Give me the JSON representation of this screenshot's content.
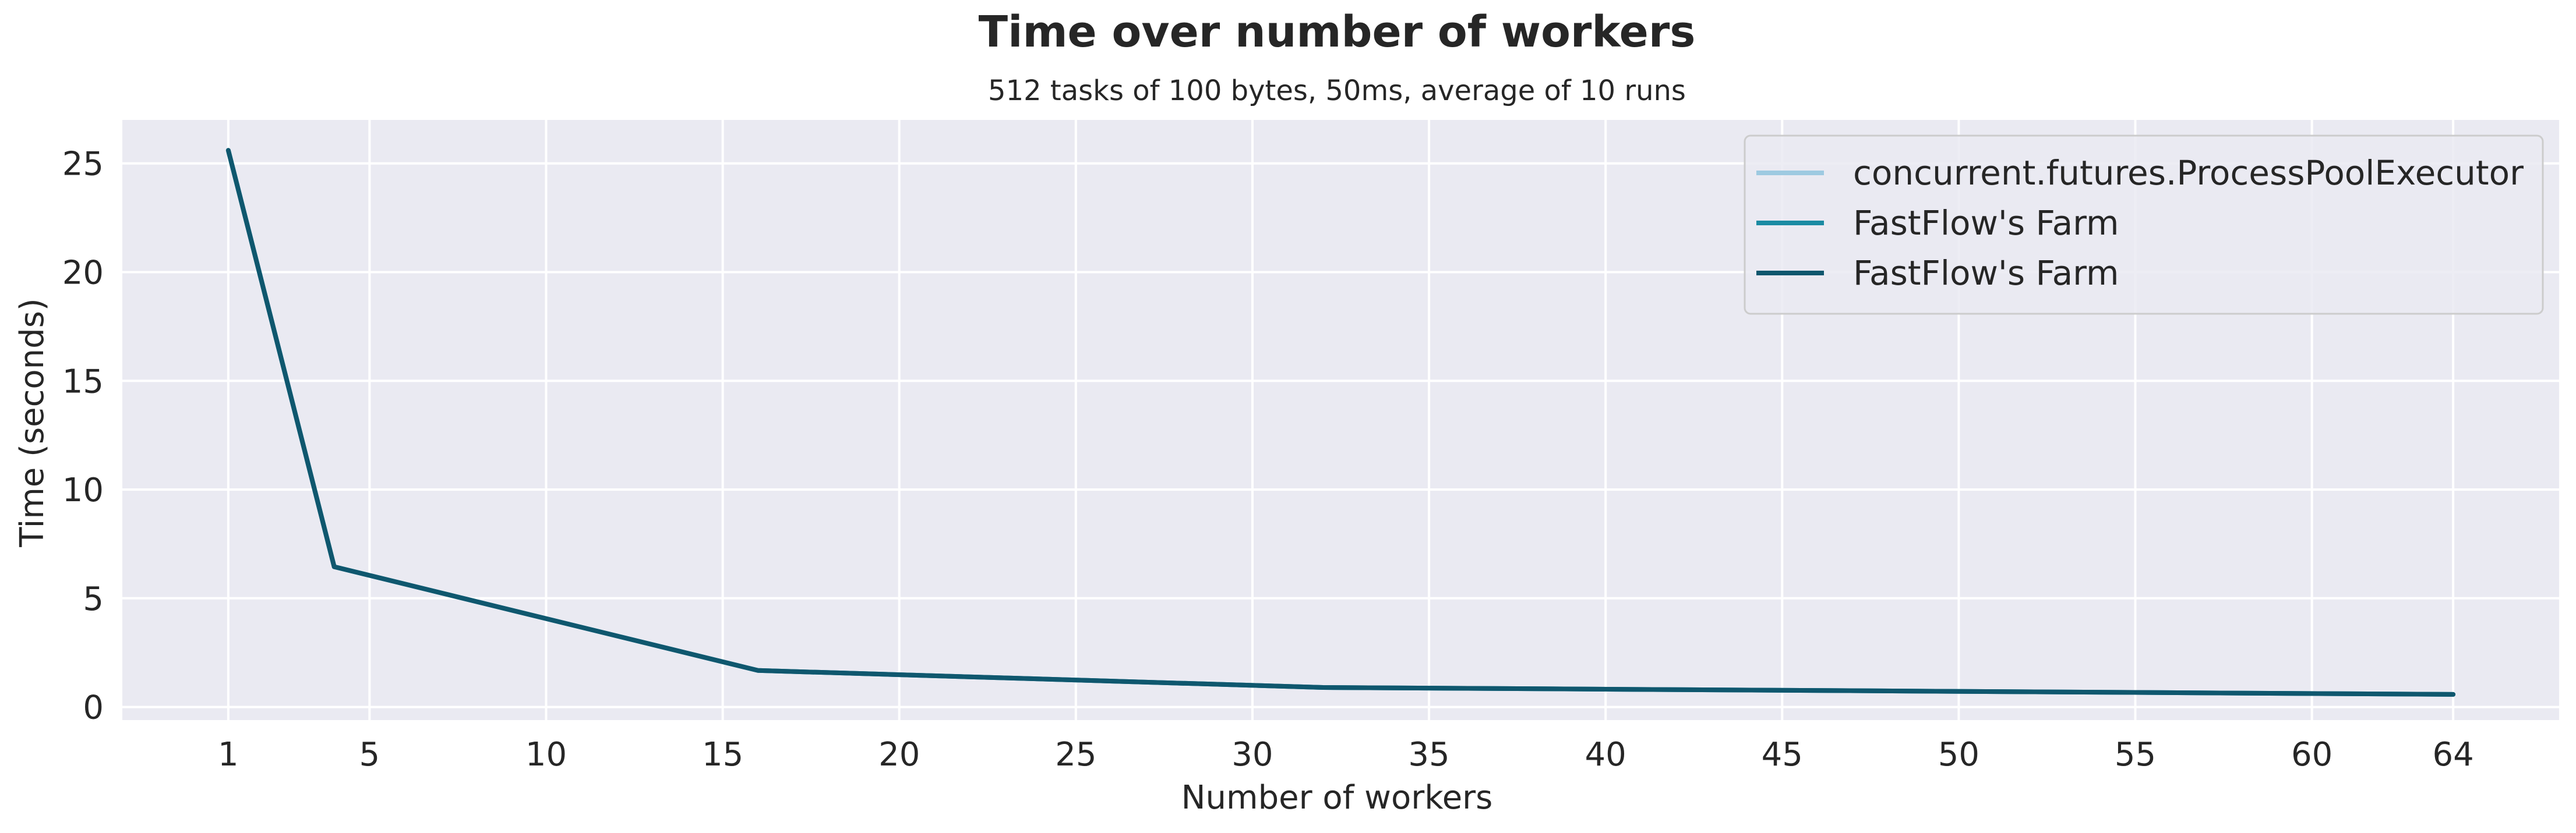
{
  "chart_data": {
    "type": "line",
    "title": "Time over number of workers",
    "subtitle": "512 tasks of 100 bytes, 50ms, average of 10 runs",
    "xlabel": "Number of workers",
    "ylabel": "Time (seconds)",
    "xlim": [
      -2,
      67
    ],
    "ylim": [
      -0.6,
      27
    ],
    "xticks": [
      1,
      5,
      10,
      15,
      20,
      25,
      30,
      35,
      40,
      45,
      50,
      55,
      60,
      64
    ],
    "yticks": [
      0,
      5,
      10,
      15,
      20,
      25
    ],
    "grid": true,
    "legend_position": "top-right",
    "x": [
      1,
      4,
      16,
      32,
      64
    ],
    "series": [
      {
        "name": "concurrent.futures.ProcessPoolExecutor",
        "color": "#9ecae1",
        "values": [
          25.6,
          6.45,
          1.68,
          0.9,
          0.58
        ]
      },
      {
        "name": "FastFlow's Farm",
        "color": "#1b8ba3",
        "values": [
          25.6,
          6.45,
          1.68,
          0.9,
          0.58
        ]
      },
      {
        "name": "FastFlow's Farm",
        "color": "#0f576e",
        "values": [
          25.6,
          6.45,
          1.68,
          0.9,
          0.58
        ]
      }
    ]
  },
  "style": {
    "plot_background": "#eaeaf2",
    "grid_color": "#ffffff",
    "text_color": "#262626",
    "legend_border": "#cccccc"
  }
}
